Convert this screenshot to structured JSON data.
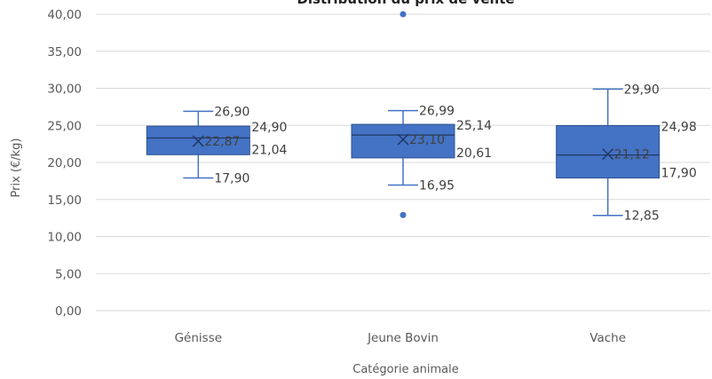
{
  "chart_data": {
    "type": "boxplot",
    "title": "Distribution du prix de vente",
    "xlabel": "Catégorie animale",
    "ylabel": "Prix (€/kg)",
    "ylim": [
      0,
      40
    ],
    "y_ticks": [
      "0,00",
      "5,00",
      "10,00",
      "15,00",
      "20,00",
      "25,00",
      "30,00",
      "35,00",
      "40,00"
    ],
    "grid": true,
    "categories": [
      "Génisse",
      "Jeune Bovin",
      "Vache"
    ],
    "boxes": [
      {
        "category": "Génisse",
        "min": 17.9,
        "q1": 21.04,
        "median": 23.3,
        "q3": 24.9,
        "max": 26.9,
        "mean": 22.87,
        "outliers": [],
        "labels": {
          "min": "17,90",
          "q1": "21,04",
          "q3": "24,90",
          "max": "26,90",
          "mean": "22,87"
        }
      },
      {
        "category": "Jeune Bovin",
        "min": 16.95,
        "q1": 20.61,
        "median": 23.7,
        "q3": 25.14,
        "max": 26.99,
        "mean": 23.1,
        "outliers": [
          40.0,
          12.9
        ],
        "labels": {
          "min": "16,95",
          "q1": "20,61",
          "q3": "25,14",
          "max": "26,99",
          "mean": "23,10"
        }
      },
      {
        "category": "Vache",
        "min": 12.85,
        "q1": 17.9,
        "median": 21.0,
        "q3": 24.98,
        "max": 29.9,
        "mean": 21.12,
        "outliers": [],
        "labels": {
          "min": "12,85",
          "q1": "17,90",
          "q3": "24,98",
          "max": "29,90",
          "mean": "21,12"
        }
      }
    ],
    "colors": {
      "box": "#4472C4",
      "box_border": "#2F528F",
      "grid": "#D9D9D9",
      "text": "#595959"
    }
  }
}
